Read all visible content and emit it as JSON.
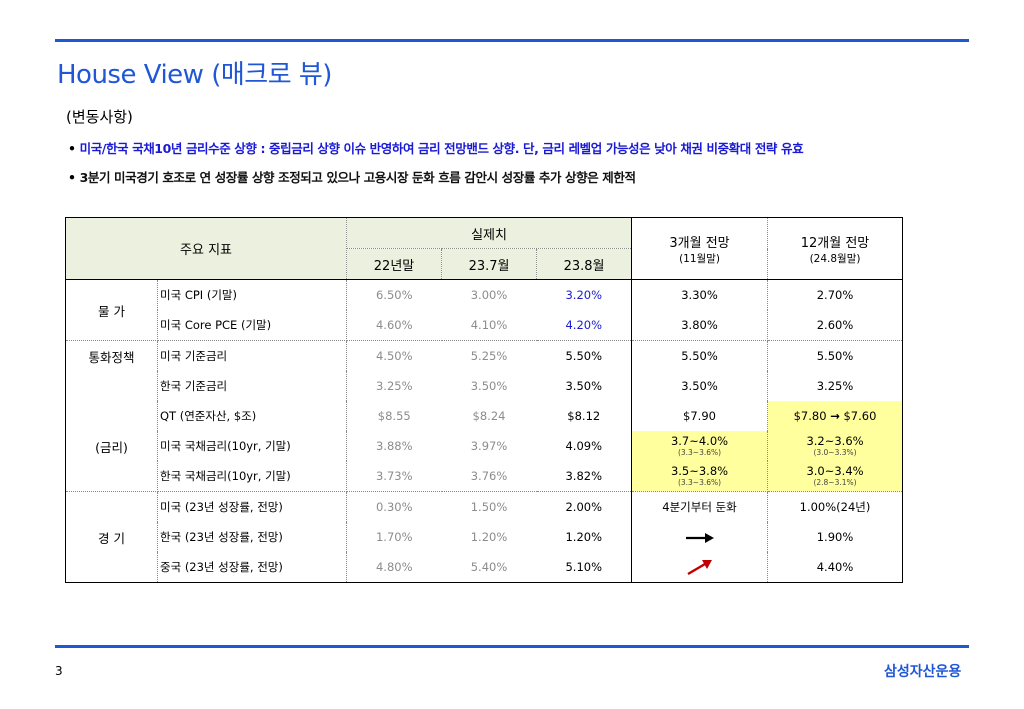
{
  "title": "House View (매크로 뷰)",
  "section_label": "(변동사항)",
  "bullets": [
    "미국/한국 국채10년 금리수준 상향 : 중립금리 상향 이슈 반영하여 금리 전망밴드 상향. 단, 금리 레벨업 가능성은 낮아 채권 비중확대 전략 유효",
    "3분기 미국경기 호조로 연 성장률 상향 조정되고 있으나 고용시장 둔화 흐름 감안시 성장률 추가 상향은 제한적"
  ],
  "bullet_symbol": "•",
  "table": {
    "header": {
      "indicator": "주요 지표",
      "actual": "실제치",
      "periods": [
        "22년말",
        "23.7월",
        "23.8월"
      ],
      "forecast_3m": "3개월 전망",
      "forecast_3m_sub": "(11월말)",
      "forecast_12m": "12개월 전망",
      "forecast_12m_sub": "(24.8월말)"
    },
    "categories": {
      "price": "물   가",
      "policy": "통화정책",
      "rates": "(금리)",
      "economy": "경   기"
    },
    "rows": [
      {
        "name": "미국 CPI (기말)",
        "v22": "6.50%",
        "v237": "3.00%",
        "v238": "3.20%",
        "f3": "3.30%",
        "f12": "2.70%"
      },
      {
        "name": "미국 Core PCE (기말)",
        "v22": "4.60%",
        "v237": "4.10%",
        "v238": "4.20%",
        "f3": "3.80%",
        "f12": "2.60%"
      },
      {
        "name": "미국 기준금리",
        "v22": "4.50%",
        "v237": "5.25%",
        "v238": "5.50%",
        "f3": "5.50%",
        "f12": "5.50%"
      },
      {
        "name": "한국 기준금리",
        "v22": "3.25%",
        "v237": "3.50%",
        "v238": "3.50%",
        "f3": "3.50%",
        "f12": "3.25%"
      },
      {
        "name": "QT (연준자산, $조)",
        "v22": "$8.55",
        "v237": "$8.24",
        "v238": "$8.12",
        "f3": "$7.90",
        "f12_from": "$7.80",
        "f12_arrow": "→",
        "f12_to": "$7.60"
      },
      {
        "name": "미국 국채금리(10yr, 기말)",
        "v22": "3.88%",
        "v237": "3.97%",
        "v238": "4.09%",
        "f3": "3.7~4.0%",
        "f3_sub": "(3.3~3.6%)",
        "f12": "3.2~3.6%",
        "f12_sub": "(3.0~3.3%)"
      },
      {
        "name": "한국 국채금리(10yr, 기말)",
        "v22": "3.73%",
        "v237": "3.76%",
        "v238": "3.82%",
        "f3": "3.5~3.8%",
        "f3_sub": "(3.3~3.6%)",
        "f12": "3.0~3.4%",
        "f12_sub": "(2.8~3.1%)"
      },
      {
        "name": "미국 (23년 성장률, 전망)",
        "v22": "0.30%",
        "v237": "1.50%",
        "v238": "2.00%",
        "f3": "4분기부터 둔화",
        "f12": "1.00%(24년)"
      },
      {
        "name": "한국 (23년 성장률, 전망)",
        "v22": "1.70%",
        "v237": "1.20%",
        "v238": "1.20%",
        "f3_icon": "right-arrow-icon",
        "f12": "1.90%"
      },
      {
        "name": "중국 (23년 성장률, 전망)",
        "v22": "4.80%",
        "v237": "5.40%",
        "v238": "5.10%",
        "f3_icon": "up-right-arrow-icon",
        "f12": "4.40%"
      }
    ]
  },
  "colors": {
    "accent_blue": "#1f57d6",
    "highlight_text_blue": "#1a1ad6",
    "header_green": "#ebf1de",
    "highlight_yellow": "#ffff9e",
    "arrow_red": "#c00000"
  },
  "footer": {
    "page_number": "3",
    "company": "삼성자산운용"
  }
}
